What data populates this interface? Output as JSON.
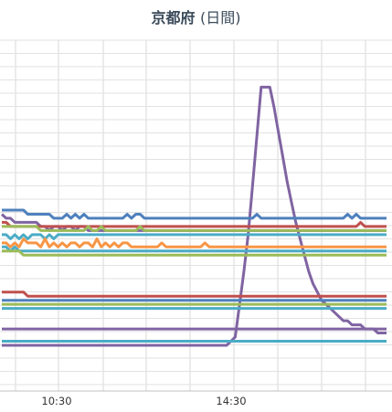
{
  "chart_data": {
    "type": "line",
    "title": "京都府",
    "subtitle": "(日間)",
    "xlabel": "",
    "ylabel": "",
    "x_tick_labels": [
      "10:30",
      "14:30"
    ],
    "grid": true,
    "legend": "none",
    "series": [
      {
        "color": "#8064a2",
        "values": [
          0,
          0,
          0,
          0,
          0,
          0,
          0,
          0,
          0,
          0,
          0,
          0,
          0,
          0,
          0,
          0,
          0,
          0,
          0,
          0,
          0,
          0,
          0,
          0,
          0,
          0,
          0,
          0,
          0,
          0,
          0,
          0,
          0,
          0,
          0,
          0,
          0,
          0,
          0,
          0,
          0,
          0,
          0,
          0,
          0,
          0,
          0,
          0,
          0,
          0,
          0,
          0,
          0,
          1,
          2,
          10,
          18,
          27,
          39,
          51,
          63,
          63,
          63,
          58,
          52,
          46,
          40,
          35,
          30,
          26,
          22,
          18,
          15,
          13,
          11,
          10,
          9,
          8,
          7,
          6,
          6,
          5,
          5,
          5,
          4,
          4,
          4,
          3,
          3,
          3
        ]
      },
      {
        "color": "#4f81bd",
        "values": [
          33,
          33,
          33,
          33,
          33,
          33,
          32,
          32,
          32,
          32,
          32,
          32,
          31,
          31,
          31,
          32,
          31,
          32,
          31,
          32,
          31,
          31,
          31,
          31,
          31,
          31,
          31,
          31,
          31,
          32,
          31,
          32,
          32,
          31,
          31,
          31,
          31,
          31,
          31,
          31,
          31,
          31,
          31,
          31,
          31,
          31,
          31,
          31,
          31,
          31,
          31,
          31,
          31,
          31,
          31,
          31,
          31,
          31,
          31,
          32,
          31,
          31,
          31,
          31,
          31,
          31,
          31,
          31,
          31,
          31,
          31,
          31,
          31,
          31,
          31,
          31,
          31,
          31,
          31,
          31,
          32,
          31,
          32,
          31,
          31,
          31,
          31,
          31,
          31,
          31
        ]
      },
      {
        "color": "#8064a2",
        "values": [
          32,
          31,
          31,
          30,
          30,
          30,
          30,
          30,
          30,
          29,
          29,
          28,
          29,
          29,
          28,
          29,
          29,
          28,
          29,
          29,
          28,
          28,
          28,
          28,
          28,
          28,
          28,
          28,
          28,
          28,
          28,
          28,
          28,
          28,
          28,
          28,
          28,
          28,
          28,
          28,
          28,
          28,
          28,
          28,
          28,
          28,
          28,
          28,
          28,
          28,
          28,
          28,
          28,
          28,
          28,
          28,
          28,
          28,
          28,
          28,
          28,
          28,
          28,
          28,
          28,
          28,
          28,
          28,
          28,
          28,
          28,
          28,
          28,
          28,
          28,
          28,
          28,
          28,
          28,
          28,
          28,
          28,
          28,
          28,
          28,
          28,
          28,
          28,
          28,
          28
        ]
      },
      {
        "color": "#c0504d",
        "values": [
          30,
          30,
          29,
          29,
          29,
          29,
          29,
          29,
          29,
          29,
          29,
          29,
          29,
          29,
          29,
          29,
          29,
          29,
          29,
          29,
          29,
          29,
          29,
          29,
          29,
          29,
          29,
          29,
          29,
          29,
          29,
          29,
          29,
          29,
          29,
          29,
          29,
          29,
          29,
          29,
          29,
          29,
          29,
          29,
          29,
          29,
          29,
          29,
          29,
          29,
          29,
          29,
          29,
          29,
          29,
          29,
          29,
          29,
          29,
          29,
          29,
          29,
          29,
          29,
          29,
          29,
          29,
          29,
          29,
          29,
          29,
          29,
          29,
          29,
          29,
          29,
          29,
          29,
          29,
          29,
          29,
          29,
          29,
          30,
          29,
          29,
          29,
          29,
          29,
          29
        ]
      },
      {
        "color": "#9bbb59",
        "values": [
          29,
          29,
          29,
          29,
          29,
          29,
          29,
          29,
          29,
          28,
          28,
          28,
          28,
          28,
          28,
          28,
          28,
          28,
          28,
          28,
          29,
          28,
          28,
          29,
          28,
          28,
          28,
          28,
          28,
          28,
          28,
          28,
          29,
          28,
          28,
          28,
          28,
          28,
          28,
          28,
          28,
          28,
          28,
          28,
          28,
          28,
          28,
          28,
          28,
          28,
          28,
          28,
          28,
          28,
          28,
          28,
          28,
          28,
          28,
          28,
          28,
          28,
          28,
          28,
          28,
          28,
          28,
          28,
          28,
          28,
          28,
          28,
          28,
          28,
          28,
          28,
          28,
          28,
          28,
          28,
          28,
          28,
          28,
          28,
          28,
          28,
          28,
          28,
          28,
          28
        ]
      },
      {
        "color": "#4bacc6",
        "values": [
          27,
          27,
          26,
          27,
          26,
          27,
          26,
          27,
          27,
          27,
          26,
          27,
          26,
          27,
          27,
          27,
          27,
          27,
          27,
          27,
          27,
          27,
          27,
          27,
          27,
          27,
          27,
          27,
          27,
          27,
          27,
          27,
          27,
          27,
          27,
          27,
          27,
          27,
          27,
          27,
          27,
          27,
          27,
          27,
          27,
          27,
          27,
          27,
          27,
          27,
          27,
          27,
          27,
          27,
          27,
          27,
          27,
          27,
          27,
          27,
          27,
          27,
          27,
          27,
          27,
          27,
          27,
          27,
          27,
          27,
          27,
          27,
          27,
          27,
          27,
          27,
          27,
          27,
          27,
          27,
          27,
          27,
          27,
          27,
          27,
          27,
          27,
          27,
          27,
          27
        ]
      },
      {
        "color": "#f79646",
        "values": [
          25,
          25,
          24,
          25,
          24,
          26,
          25,
          25,
          25,
          24,
          26,
          24,
          25,
          24,
          25,
          24,
          25,
          25,
          24,
          25,
          25,
          24,
          26,
          24,
          25,
          24,
          25,
          24,
          25,
          25,
          24,
          24,
          24,
          24,
          24,
          24,
          24,
          25,
          24,
          24,
          24,
          24,
          24,
          24,
          24,
          24,
          24,
          25,
          24,
          24,
          24,
          24,
          24,
          24,
          24,
          24,
          24,
          24,
          24,
          24,
          24,
          24,
          24,
          24,
          24,
          24,
          24,
          24,
          24,
          24,
          24,
          24,
          24,
          24,
          24,
          24,
          24,
          24,
          24,
          24,
          24,
          24,
          24,
          24,
          24,
          24,
          24,
          24,
          24,
          24
        ]
      },
      {
        "color": "#4bacc6",
        "values": [
          24,
          24,
          23,
          24,
          23,
          23,
          23,
          23,
          23,
          23,
          23,
          23,
          23,
          23,
          23,
          23,
          23,
          23,
          23,
          23,
          23,
          23,
          23,
          23,
          23,
          23,
          23,
          23,
          23,
          23,
          23,
          23,
          23,
          23,
          23,
          23,
          23,
          23,
          23,
          23,
          23,
          23,
          23,
          23,
          23,
          23,
          23,
          23,
          23,
          23,
          23,
          23,
          23,
          23,
          23,
          23,
          23,
          23,
          23,
          23,
          23,
          23,
          23,
          23,
          23,
          23,
          23,
          23,
          23,
          23,
          23,
          23,
          23,
          23,
          23,
          23,
          23,
          23,
          23,
          23,
          23,
          23,
          23,
          23,
          23,
          23,
          23,
          23,
          23,
          23
        ]
      },
      {
        "color": "#9bbb59",
        "values": [
          23,
          23,
          23,
          23,
          23,
          22,
          22,
          22,
          22,
          22,
          22,
          22,
          22,
          22,
          22,
          22,
          22,
          22,
          22,
          22,
          22,
          22,
          22,
          22,
          22,
          22,
          22,
          22,
          22,
          22,
          22,
          22,
          22,
          22,
          22,
          22,
          22,
          22,
          22,
          22,
          22,
          22,
          22,
          22,
          22,
          22,
          22,
          22,
          22,
          22,
          22,
          22,
          22,
          22,
          22,
          22,
          22,
          22,
          22,
          22,
          22,
          22,
          22,
          22,
          22,
          22,
          22,
          22,
          22,
          22,
          22,
          22,
          22,
          22,
          22,
          22,
          22,
          22,
          22,
          22,
          22,
          22,
          22,
          22,
          22,
          22,
          22,
          22,
          22,
          22
        ]
      },
      {
        "color": "#c0504d",
        "values": [
          13,
          13,
          13,
          13,
          13,
          13,
          12,
          12,
          12,
          12,
          12,
          12,
          12,
          12,
          12,
          12,
          12,
          12,
          12,
          12,
          12,
          12,
          12,
          12,
          12,
          12,
          12,
          12,
          12,
          12,
          12,
          12,
          12,
          12,
          12,
          12,
          12,
          12,
          12,
          12,
          12,
          12,
          12,
          12,
          12,
          12,
          12,
          12,
          12,
          12,
          12,
          12,
          12,
          12,
          12,
          12,
          12,
          12,
          12,
          12,
          12,
          12,
          12,
          12,
          12,
          12,
          12,
          12,
          12,
          12,
          12,
          12,
          12,
          12,
          12,
          12,
          12,
          12,
          12,
          12,
          12,
          12,
          12,
          12,
          12,
          12,
          12,
          12,
          12,
          12
        ]
      },
      {
        "color": "#4f81bd",
        "values": [
          11,
          11,
          11,
          11,
          11,
          11,
          11,
          11,
          11,
          11,
          11,
          11,
          11,
          11,
          11,
          11,
          11,
          11,
          11,
          11,
          11,
          11,
          11,
          11,
          11,
          11,
          11,
          11,
          11,
          11,
          11,
          11,
          11,
          11,
          11,
          11,
          11,
          11,
          11,
          11,
          11,
          11,
          11,
          11,
          11,
          11,
          11,
          11,
          11,
          11,
          11,
          11,
          11,
          11,
          11,
          11,
          11,
          11,
          11,
          11,
          11,
          11,
          11,
          11,
          11,
          11,
          11,
          11,
          11,
          11,
          11,
          11,
          11,
          11,
          11,
          11,
          11,
          11,
          11,
          11,
          11,
          11,
          11,
          11,
          11,
          11,
          11,
          11,
          11,
          11
        ]
      },
      {
        "color": "#9bbb59",
        "values": [
          10,
          10,
          10,
          10,
          10,
          10,
          10,
          10,
          10,
          10,
          10,
          10,
          10,
          10,
          10,
          10,
          10,
          10,
          10,
          10,
          10,
          10,
          10,
          10,
          10,
          10,
          10,
          10,
          10,
          10,
          10,
          10,
          10,
          10,
          10,
          10,
          10,
          10,
          10,
          10,
          10,
          10,
          10,
          10,
          10,
          10,
          10,
          10,
          10,
          10,
          10,
          10,
          10,
          10,
          10,
          10,
          10,
          10,
          10,
          10,
          10,
          10,
          10,
          10,
          10,
          10,
          10,
          10,
          10,
          10,
          10,
          10,
          10,
          10,
          10,
          10,
          10,
          10,
          10,
          10,
          10,
          10,
          10,
          10,
          10,
          10,
          10,
          10,
          10,
          10
        ]
      },
      {
        "color": "#4bacc6",
        "values": [
          9,
          9,
          9,
          9,
          9,
          9,
          9,
          9,
          9,
          9,
          9,
          9,
          9,
          9,
          9,
          9,
          9,
          9,
          9,
          9,
          9,
          9,
          9,
          9,
          9,
          9,
          9,
          9,
          9,
          9,
          9,
          9,
          9,
          9,
          9,
          9,
          9,
          9,
          9,
          9,
          9,
          9,
          9,
          9,
          9,
          9,
          9,
          9,
          9,
          9,
          9,
          9,
          9,
          9,
          9,
          9,
          9,
          9,
          9,
          9,
          9,
          9,
          9,
          9,
          9,
          9,
          9,
          9,
          9,
          9,
          9,
          9,
          9,
          9,
          9,
          9,
          9,
          9,
          9,
          9,
          9,
          9,
          9,
          9,
          9,
          9,
          9,
          9,
          9,
          9
        ]
      },
      {
        "color": "#8064a2",
        "values": [
          4,
          4,
          4,
          4,
          4,
          4,
          4,
          4,
          4,
          4,
          4,
          4,
          4,
          4,
          4,
          4,
          4,
          4,
          4,
          4,
          4,
          4,
          4,
          4,
          4,
          4,
          4,
          4,
          4,
          4,
          4,
          4,
          4,
          4,
          4,
          4,
          4,
          4,
          4,
          4,
          4,
          4,
          4,
          4,
          4,
          4,
          4,
          4,
          4,
          4,
          4,
          4,
          4,
          4,
          4,
          4,
          4,
          4,
          4,
          4,
          4,
          4,
          4,
          4,
          4,
          4,
          4,
          4,
          4,
          4,
          4,
          4,
          4,
          4,
          4,
          4,
          4,
          4,
          4,
          4,
          4,
          4,
          4,
          4,
          4,
          4,
          4,
          4,
          4,
          4
        ]
      },
      {
        "color": "#4bacc6",
        "values": [
          1,
          1,
          1,
          1,
          1,
          1,
          1,
          1,
          1,
          1,
          1,
          1,
          1,
          1,
          1,
          1,
          1,
          1,
          1,
          1,
          1,
          1,
          1,
          1,
          1,
          1,
          1,
          1,
          1,
          1,
          1,
          1,
          1,
          1,
          1,
          1,
          1,
          1,
          1,
          1,
          1,
          1,
          1,
          1,
          1,
          1,
          1,
          1,
          1,
          1,
          1,
          1,
          1,
          1,
          1,
          1,
          1,
          1,
          1,
          1,
          1,
          1,
          1,
          1,
          1,
          1,
          1,
          1,
          1,
          1,
          1,
          1,
          1,
          1,
          1,
          1,
          1,
          1,
          1,
          1,
          1,
          1,
          1,
          1,
          1,
          1,
          1,
          1,
          1,
          1
        ]
      }
    ]
  }
}
